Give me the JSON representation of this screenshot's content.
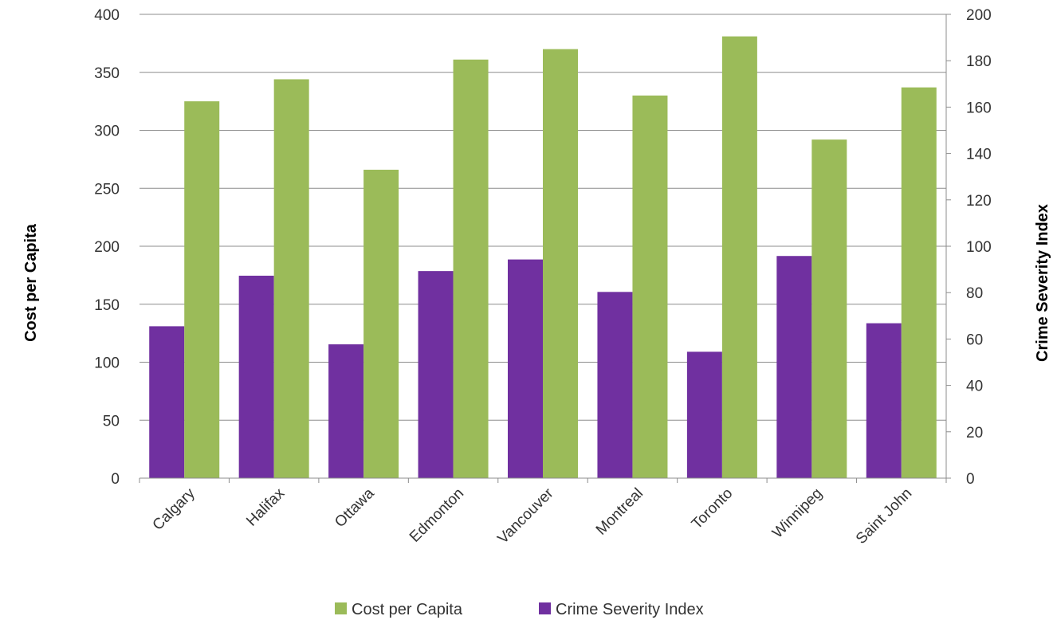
{
  "chart_data": {
    "type": "bar",
    "categories": [
      "Calgary",
      "Halifax",
      "Ottawa",
      "Edmonton",
      "Vancouver",
      "Montreal",
      "Toronto",
      "Winnipeg",
      "Saint John"
    ],
    "series": [
      {
        "name": "Crime Severity Index",
        "axis": "right",
        "color": "#7030a0",
        "values": [
          65.5,
          87.3,
          57.7,
          89.3,
          94.3,
          80.3,
          54.5,
          95.8,
          66.8
        ]
      },
      {
        "name": "Cost per Capita",
        "axis": "left",
        "color": "#9bbb59",
        "values": [
          325,
          344,
          266,
          361,
          370,
          330,
          381,
          292,
          337
        ]
      }
    ],
    "ylabel": "Cost per Capita",
    "y2label": "Crime Severity Index",
    "ylim": [
      0,
      400
    ],
    "y2lim": [
      0,
      200
    ],
    "yticks": [
      0,
      50,
      100,
      150,
      200,
      250,
      300,
      350,
      400
    ],
    "y2ticks": [
      0,
      20,
      40,
      60,
      80,
      100,
      120,
      140,
      160,
      180,
      200
    ],
    "grid": "horizontal",
    "legend_position": "bottom"
  }
}
